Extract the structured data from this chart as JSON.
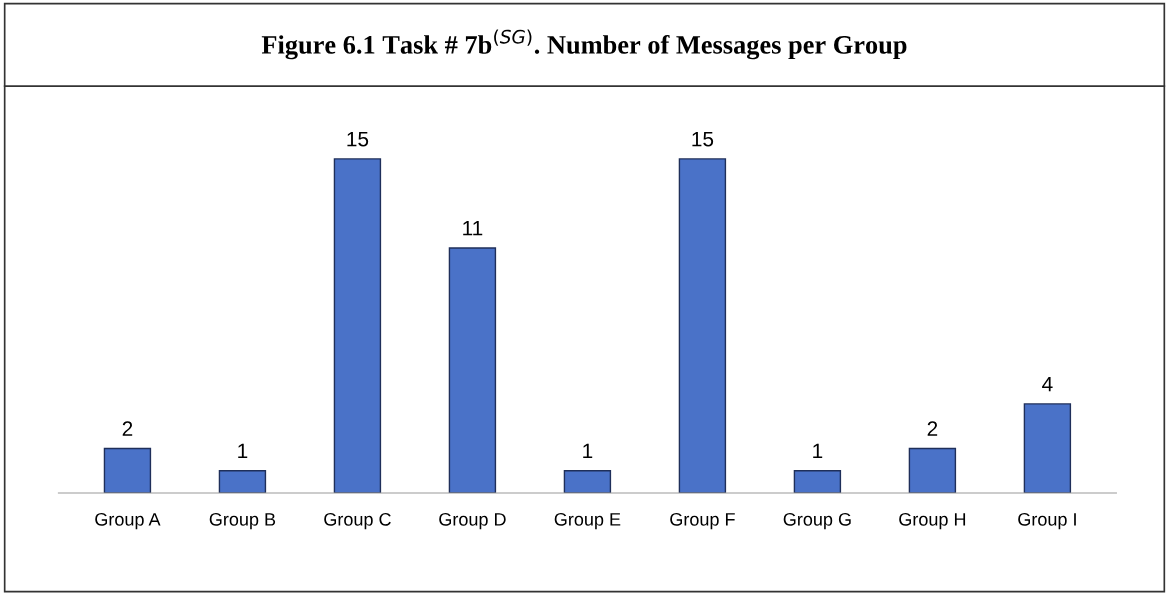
{
  "chart_data": {
    "type": "bar",
    "title": "Figure 6.1 Task # 7b$^{(SG)}$. Number of Messages per Group",
    "categories": [
      "Group A",
      "Group B",
      "Group C",
      "Group D",
      "Group E",
      "Group F",
      "Group G",
      "Group H",
      "Group I"
    ],
    "values": [
      2,
      1,
      15,
      11,
      1,
      15,
      1,
      2,
      4
    ],
    "color": "#4a72c8",
    "data_labels": true,
    "tick_labels": "x",
    "grid": false,
    "legend": false
  }
}
